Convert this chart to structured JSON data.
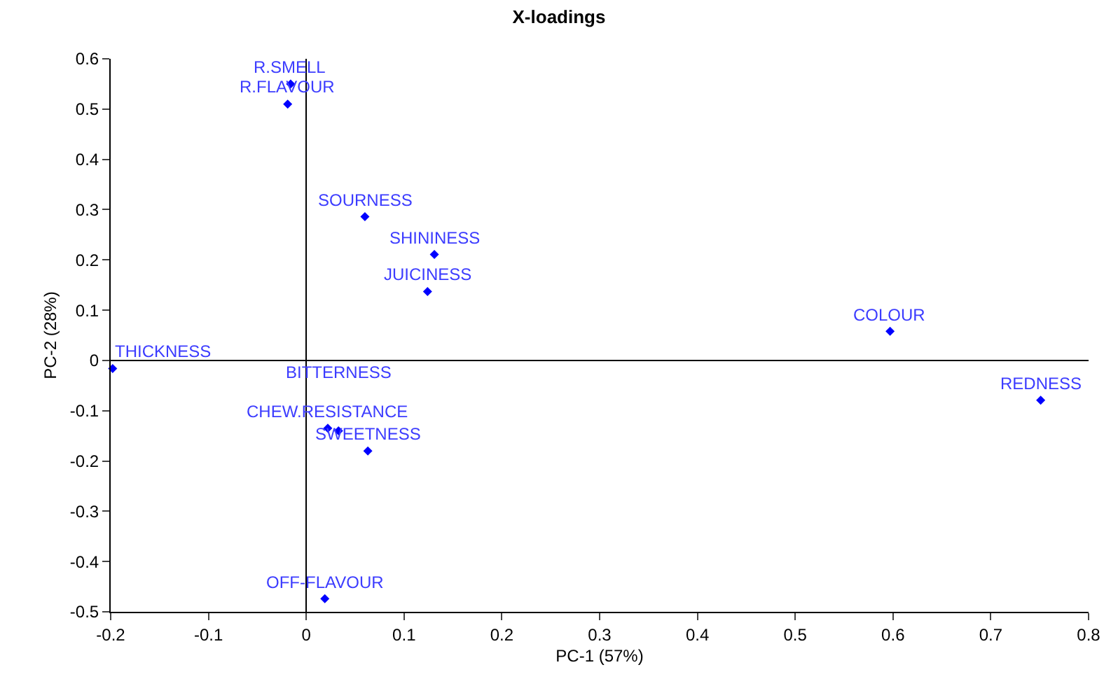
{
  "chart_data": {
    "type": "scatter",
    "title": "X-loadings",
    "xlabel": "PC-1 (57%)",
    "ylabel": "PC-2 (28%)",
    "x": [
      -0.016,
      -0.019,
      0.06,
      0.131,
      0.124,
      -0.198,
      0.022,
      0.033,
      0.063,
      0.019,
      0.597,
      0.751
    ],
    "series": [
      {
        "color": "#0000ff",
        "values": [
          0.55,
          0.51,
          0.286,
          0.211,
          0.137,
          -0.016,
          -0.135,
          -0.14,
          -0.18,
          -0.474,
          0.058,
          -0.079
        ]
      }
    ],
    "marker": "diamond",
    "xlim": [
      -0.2,
      0.8
    ],
    "xticks": [
      -0.2,
      -0.1,
      0,
      0.1,
      0.2,
      0.3,
      0.4,
      0.5,
      0.6,
      0.7,
      0.8
    ],
    "ylim": [
      -0.5,
      0.6
    ],
    "yticks": [
      -0.5,
      -0.4,
      -0.3,
      -0.2,
      -0.1,
      0,
      0.1,
      0.2,
      0.3,
      0.4,
      0.5,
      0.6
    ],
    "annotations": [
      {
        "text": "R.SMELL",
        "x": -0.016,
        "y": 0.55
      },
      {
        "text": "R.FLAVOUR",
        "x": -0.019,
        "y": 0.51
      },
      {
        "text": "SOURNESS",
        "x": 0.06,
        "y": 0.286
      },
      {
        "text": "SHININESS",
        "x": 0.131,
        "y": 0.211
      },
      {
        "text": "JUICINESS",
        "x": 0.124,
        "y": 0.137
      },
      {
        "text": "THICKNESS",
        "x": -0.198,
        "y": -0.016
      },
      {
        "text": "CHEW.RESISTANCE",
        "x": 0.022,
        "y": -0.135
      },
      {
        "text": "BITTERNESS",
        "x": 0.033,
        "y": -0.14
      },
      {
        "text": "SWEETNESS",
        "x": 0.063,
        "y": -0.18
      },
      {
        "text": "OFF-FLAVOUR",
        "x": 0.019,
        "y": -0.474
      },
      {
        "text": "COLOUR",
        "x": 0.597,
        "y": 0.058
      },
      {
        "text": "REDNESS",
        "x": 0.751,
        "y": -0.079
      }
    ]
  }
}
